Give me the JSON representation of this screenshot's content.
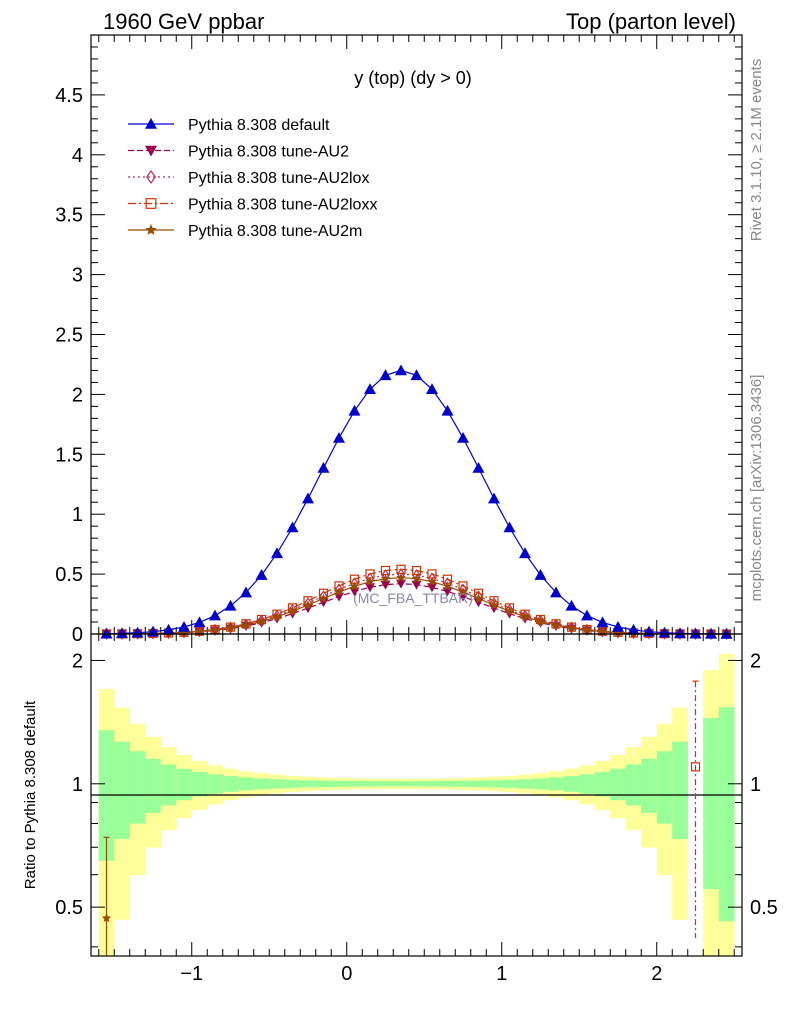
{
  "header": {
    "left": "1960 GeV ppbar",
    "right": "Top (parton level)"
  },
  "side_text": {
    "rivet": "Rivet 3.1.10, ≥ 2.1M events",
    "mcplots": "mcplots.cern.ch [arXiv:1306.3436]"
  },
  "colors": {
    "default": "#0000cc",
    "au2": "#99004d",
    "au2lox": "#b03060",
    "au2loxx": "#cc3300",
    "au2m": "#994c00",
    "band_inner": "#99ff99",
    "band_outer": "#ffff99"
  },
  "chart_data": [
    {
      "type": "line",
      "title": "y (top) (dy > 0)",
      "annotation": "(MC_FBA_TTBAR)",
      "xlim": [
        -1.65,
        2.55
      ],
      "ylim": [
        0,
        5
      ],
      "x_ticks": [
        -1,
        0,
        1,
        2
      ],
      "y_ticks": [
        0,
        0.5,
        1,
        1.5,
        2,
        2.5,
        3,
        3.5,
        4,
        4.5
      ],
      "y_tick_labels": [
        "0",
        "0.5",
        "1",
        "1.5",
        "2",
        "2.5",
        "3",
        "3.5",
        "4",
        "4.5"
      ],
      "legend_position": "top-left",
      "series": [
        {
          "name": "Pythia 8.308 default",
          "key": "default",
          "marker": "triangle-up",
          "dash": "",
          "peak": 2.2,
          "center": 0.35,
          "width": 0.52
        },
        {
          "name": "Pythia 8.308 tune-AU2",
          "key": "au2",
          "marker": "triangle-down",
          "dash": "6,3",
          "peak": 0.42,
          "center": 0.35,
          "width": 0.52
        },
        {
          "name": "Pythia 8.308 tune-AU2lox",
          "key": "au2lox",
          "marker": "diamond-open",
          "dash": "2,3",
          "peak": 0.5,
          "center": 0.35,
          "width": 0.52
        },
        {
          "name": "Pythia 8.308 tune-AU2loxx",
          "key": "au2loxx",
          "marker": "square-open",
          "dash": "8,3,2,3",
          "peak": 0.54,
          "center": 0.35,
          "width": 0.52
        },
        {
          "name": "Pythia 8.308 tune-AU2m",
          "key": "au2m",
          "marker": "star",
          "dash": "",
          "peak": 0.47,
          "center": 0.35,
          "width": 0.52
        }
      ]
    },
    {
      "type": "line",
      "ylabel": "Ratio to Pythia 8.308 default",
      "xlim": [
        -1.65,
        2.55
      ],
      "ylim": [
        0.38,
        2.32
      ],
      "log_y": true,
      "x_ticks": [
        -1,
        0,
        1,
        2
      ],
      "x_tick_labels": [
        "−1",
        "0",
        "1",
        "2"
      ],
      "y_ticks": [
        0.5,
        1,
        2
      ],
      "y_tick_labels": [
        "0.5",
        "1",
        "2"
      ],
      "reference": 1,
      "points": [
        {
          "x": -1.55,
          "y": 0.47,
          "ylow": 0.3,
          "yhigh": 0.74
        },
        {
          "x": 2.25,
          "y": 1.1,
          "ylow": 0.42,
          "yhigh": 1.78
        }
      ]
    }
  ]
}
